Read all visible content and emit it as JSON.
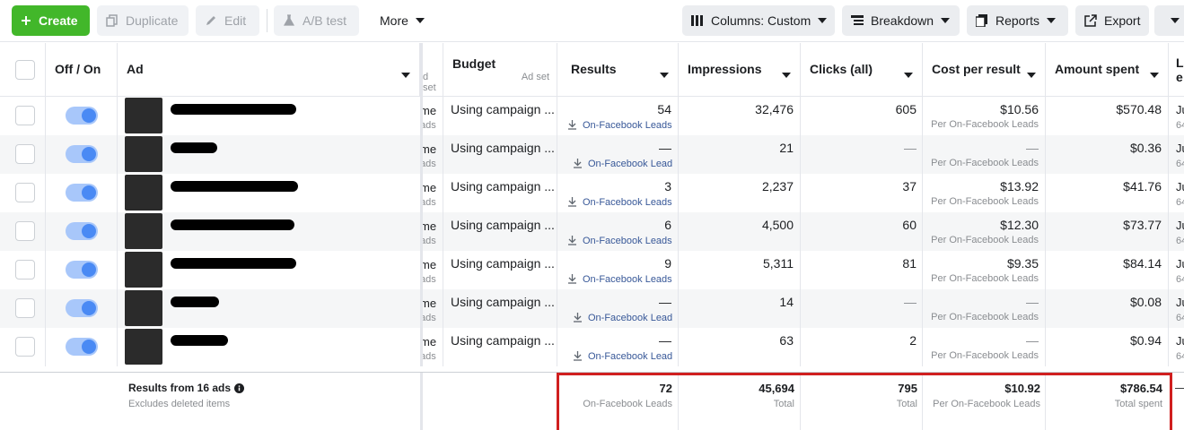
{
  "toolbar": {
    "create": "Create",
    "duplicate": "Duplicate",
    "edit": "Edit",
    "ab_test": "A/B test",
    "more": "More",
    "columns": "Columns: Custom",
    "breakdown": "Breakdown",
    "reports": "Reports",
    "export": "Export"
  },
  "headers": {
    "off_on": "Off / On",
    "ad": "Ad",
    "adset_fragment": "d set",
    "budget": "Budget",
    "budget_sub": "Ad set",
    "results": "Results",
    "impressions": "Impressions",
    "clicks": "Clicks (all)",
    "cost_per_result": "Cost per result",
    "amount_spent": "Amount spent",
    "last_col_fragment_1": "La",
    "last_col_fragment_2": "e"
  },
  "rows": [
    {
      "frag1": "me",
      "frag2": "ads",
      "budget": "Using campaign ...",
      "results": "54",
      "results_label": "On-Facebook Leads",
      "impressions": "32,476",
      "clicks": "605",
      "cpr": "$10.56",
      "cpr_label": "Per On-Facebook Leads",
      "spent": "$570.48",
      "last1": "Ju",
      "last2": "64"
    },
    {
      "frag1": "me",
      "frag2": "ads",
      "budget": "Using campaign ...",
      "results": "—",
      "results_label": "On-Facebook Lead",
      "impressions": "21",
      "clicks": "—",
      "cpr": "—",
      "cpr_label": "Per On-Facebook Leads",
      "spent": "$0.36",
      "last1": "Ju",
      "last2": "64"
    },
    {
      "frag1": "me",
      "frag2": "ads",
      "budget": "Using campaign ...",
      "results": "3",
      "results_label": "On-Facebook Leads",
      "impressions": "2,237",
      "clicks": "37",
      "cpr": "$13.92",
      "cpr_label": "Per On-Facebook Leads",
      "spent": "$41.76",
      "last1": "Ju",
      "last2": "64"
    },
    {
      "frag1": "me",
      "frag2": "ads",
      "budget": "Using campaign ...",
      "results": "6",
      "results_label": "On-Facebook Leads",
      "impressions": "4,500",
      "clicks": "60",
      "cpr": "$12.30",
      "cpr_label": "Per On-Facebook Leads",
      "spent": "$73.77",
      "last1": "Ju",
      "last2": "64"
    },
    {
      "frag1": "me",
      "frag2": "ads",
      "budget": "Using campaign ...",
      "results": "9",
      "results_label": "On-Facebook Leads",
      "impressions": "5,311",
      "clicks": "81",
      "cpr": "$9.35",
      "cpr_label": "Per On-Facebook Leads",
      "spent": "$84.14",
      "last1": "Ju",
      "last2": "64"
    },
    {
      "frag1": "me",
      "frag2": "ads",
      "budget": "Using campaign ...",
      "results": "—",
      "results_label": "On-Facebook Lead",
      "impressions": "14",
      "clicks": "—",
      "cpr": "—",
      "cpr_label": "Per On-Facebook Leads",
      "spent": "$0.08",
      "last1": "Ju",
      "last2": "64"
    },
    {
      "frag1": "me",
      "frag2": "ads",
      "budget": "Using campaign ...",
      "results": "—",
      "results_label": "On-Facebook Lead",
      "impressions": "63",
      "clicks": "2",
      "cpr": "—",
      "cpr_label": "Per On-Facebook Leads",
      "spent": "$0.94",
      "last1": "Ju",
      "last2": "64"
    }
  ],
  "summary": {
    "title": "Results from 16 ads",
    "subtitle": "Excludes deleted items",
    "results": "72",
    "results_label": "On-Facebook Leads",
    "impressions": "45,694",
    "impressions_label": "Total",
    "clicks": "795",
    "clicks_label": "Total",
    "cpr": "$10.92",
    "cpr_label": "Per On-Facebook Leads",
    "spent": "$786.54",
    "spent_label": "Total spent",
    "last": "—"
  },
  "colors": {
    "create_green": "#42b72a",
    "toggle_blue": "#4a8af4",
    "link_blue": "#385898",
    "highlight_red": "#d01f1f"
  }
}
